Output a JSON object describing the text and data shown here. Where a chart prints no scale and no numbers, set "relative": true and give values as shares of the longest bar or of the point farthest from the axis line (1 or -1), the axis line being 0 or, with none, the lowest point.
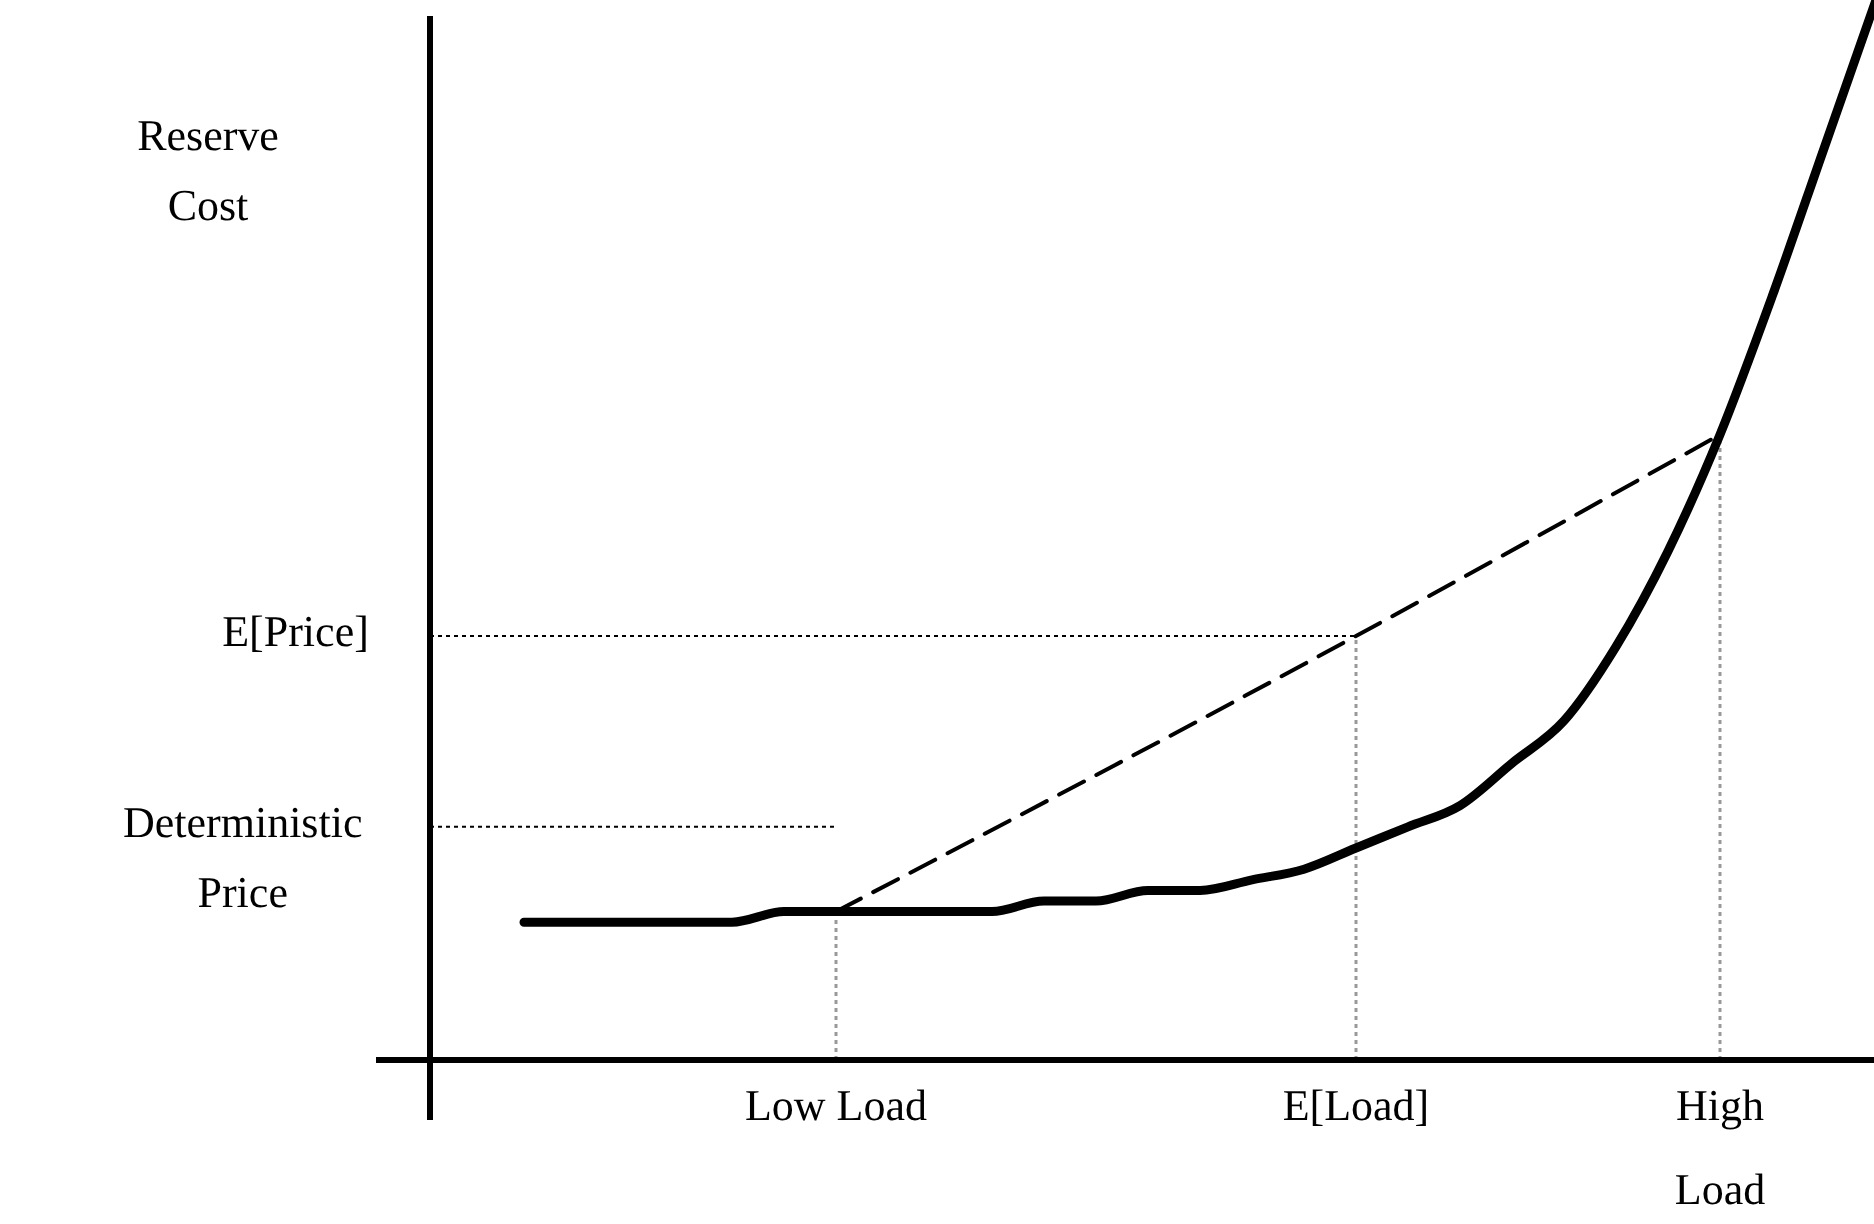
{
  "chart_data": {
    "type": "line",
    "relative": true,
    "ylabel": "Reserve Cost",
    "grid": false,
    "categories": [
      null,
      null,
      null,
      null,
      null,
      null,
      "Low Load",
      null,
      null,
      null,
      null,
      null,
      null,
      null,
      null,
      null,
      "E[Load]",
      null,
      null,
      null,
      null,
      null,
      null,
      "High Load",
      null,
      null,
      null
    ],
    "series": [
      {
        "color": "#000000",
        "line_style": "solid",
        "values": [
          0.13,
          0.13,
          0.13,
          0.13,
          0.13,
          0.14,
          0.14,
          0.14,
          0.14,
          0.14,
          0.15,
          0.15,
          0.16,
          0.16,
          0.17,
          0.18,
          0.2,
          0.22,
          0.24,
          0.28,
          0.32,
          0.39,
          0.48,
          0.59,
          0.72,
          0.86,
          1
        ]
      },
      {
        "color": "#000000",
        "line_style": "dashed",
        "x": [
          "Low Load",
          "E[Load]",
          "High Load"
        ],
        "values": [
          0.14,
          0.4,
          0.59
        ]
      }
    ],
    "ref_lines": [
      {
        "axis": "y",
        "value": 0.4,
        "label": "E[Price]",
        "line_style": "dotted",
        "color": "#000000"
      },
      {
        "axis": "y",
        "value": 0.22,
        "label": "Deterministic Price",
        "line_style": "dotted",
        "color": "#000000"
      },
      {
        "axis": "x",
        "value": "Low Load",
        "line_style": "dotted",
        "color": "#999999"
      },
      {
        "axis": "x",
        "value": "E[Load]",
        "line_style": "dotted",
        "color": "#999999"
      },
      {
        "axis": "x",
        "value": "High Load",
        "line_style": "dotted",
        "color": "#999999"
      }
    ]
  }
}
